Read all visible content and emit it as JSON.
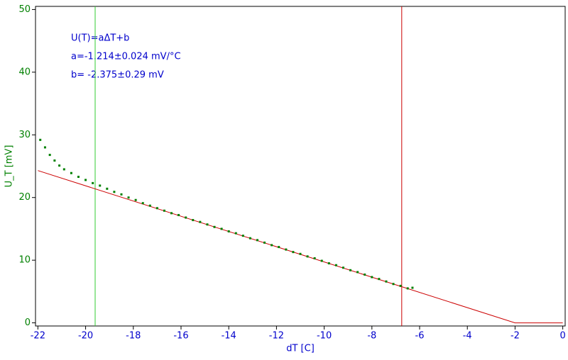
{
  "chart_data": {
    "type": "scatter",
    "x_label": "dT [C]",
    "y_label": "U_T [mV]",
    "annotations": [
      "U(T)=aΔT+b",
      "a=-1.214±0.024 mV/°C",
      "b= -2.375±0.29 mV"
    ],
    "x": [
      -21.9,
      -21.7,
      -21.5,
      -21.3,
      -21.1,
      -20.9,
      -20.6,
      -20.3,
      -20.0,
      -19.7,
      -19.4,
      -19.1,
      -18.8,
      -18.5,
      -18.2,
      -17.9,
      -17.6,
      -17.3,
      -17.0,
      -16.7,
      -16.4,
      -16.1,
      -15.8,
      -15.5,
      -15.2,
      -14.9,
      -14.6,
      -14.3,
      -14.0,
      -13.7,
      -13.4,
      -13.1,
      -12.8,
      -12.5,
      -12.2,
      -11.9,
      -11.6,
      -11.3,
      -11.0,
      -10.7,
      -10.4,
      -10.1,
      -9.8,
      -9.5,
      -9.2,
      -8.9,
      -8.6,
      -8.3,
      -8.0,
      -7.7,
      -7.4,
      -7.1,
      -6.8,
      -6.5,
      -6.3
    ],
    "series": [
      {
        "name": "U_T",
        "color": "#008000",
        "values": [
          29.2,
          28.0,
          26.8,
          25.9,
          25.1,
          24.5,
          23.9,
          23.3,
          22.8,
          22.3,
          21.9,
          21.4,
          20.9,
          20.5,
          20.0,
          19.6,
          19.1,
          18.7,
          18.3,
          17.9,
          17.5,
          17.2,
          16.8,
          16.4,
          16.1,
          15.7,
          15.3,
          15.0,
          14.6,
          14.3,
          13.9,
          13.5,
          13.2,
          12.8,
          12.4,
          12.1,
          11.7,
          11.3,
          11.0,
          10.6,
          10.3,
          9.9,
          9.5,
          9.2,
          8.8,
          8.4,
          8.1,
          7.7,
          7.3,
          7.0,
          6.6,
          6.2,
          5.9,
          5.5,
          5.6
        ]
      }
    ],
    "fit": {
      "color": "#cc0000",
      "x": [
        -22,
        -2,
        0
      ],
      "values": [
        24.3,
        0,
        0
      ]
    },
    "vlines": [
      {
        "x": -19.6,
        "color": "#33cc33"
      },
      {
        "x": -6.75,
        "color": "#cc0000"
      }
    ],
    "xlim": [
      -22.1,
      0.1
    ],
    "ylim": [
      -0.5,
      50.5
    ],
    "xticks": [
      -22,
      -20,
      -18,
      -16,
      -14,
      -12,
      -10,
      -8,
      -6,
      -4,
      -2,
      0
    ],
    "yticks": [
      0,
      10,
      20,
      30,
      40,
      50
    ],
    "x_color": "#0000cc",
    "y_color": "#008000",
    "annotation_color": "#0000cc",
    "grid": false
  }
}
